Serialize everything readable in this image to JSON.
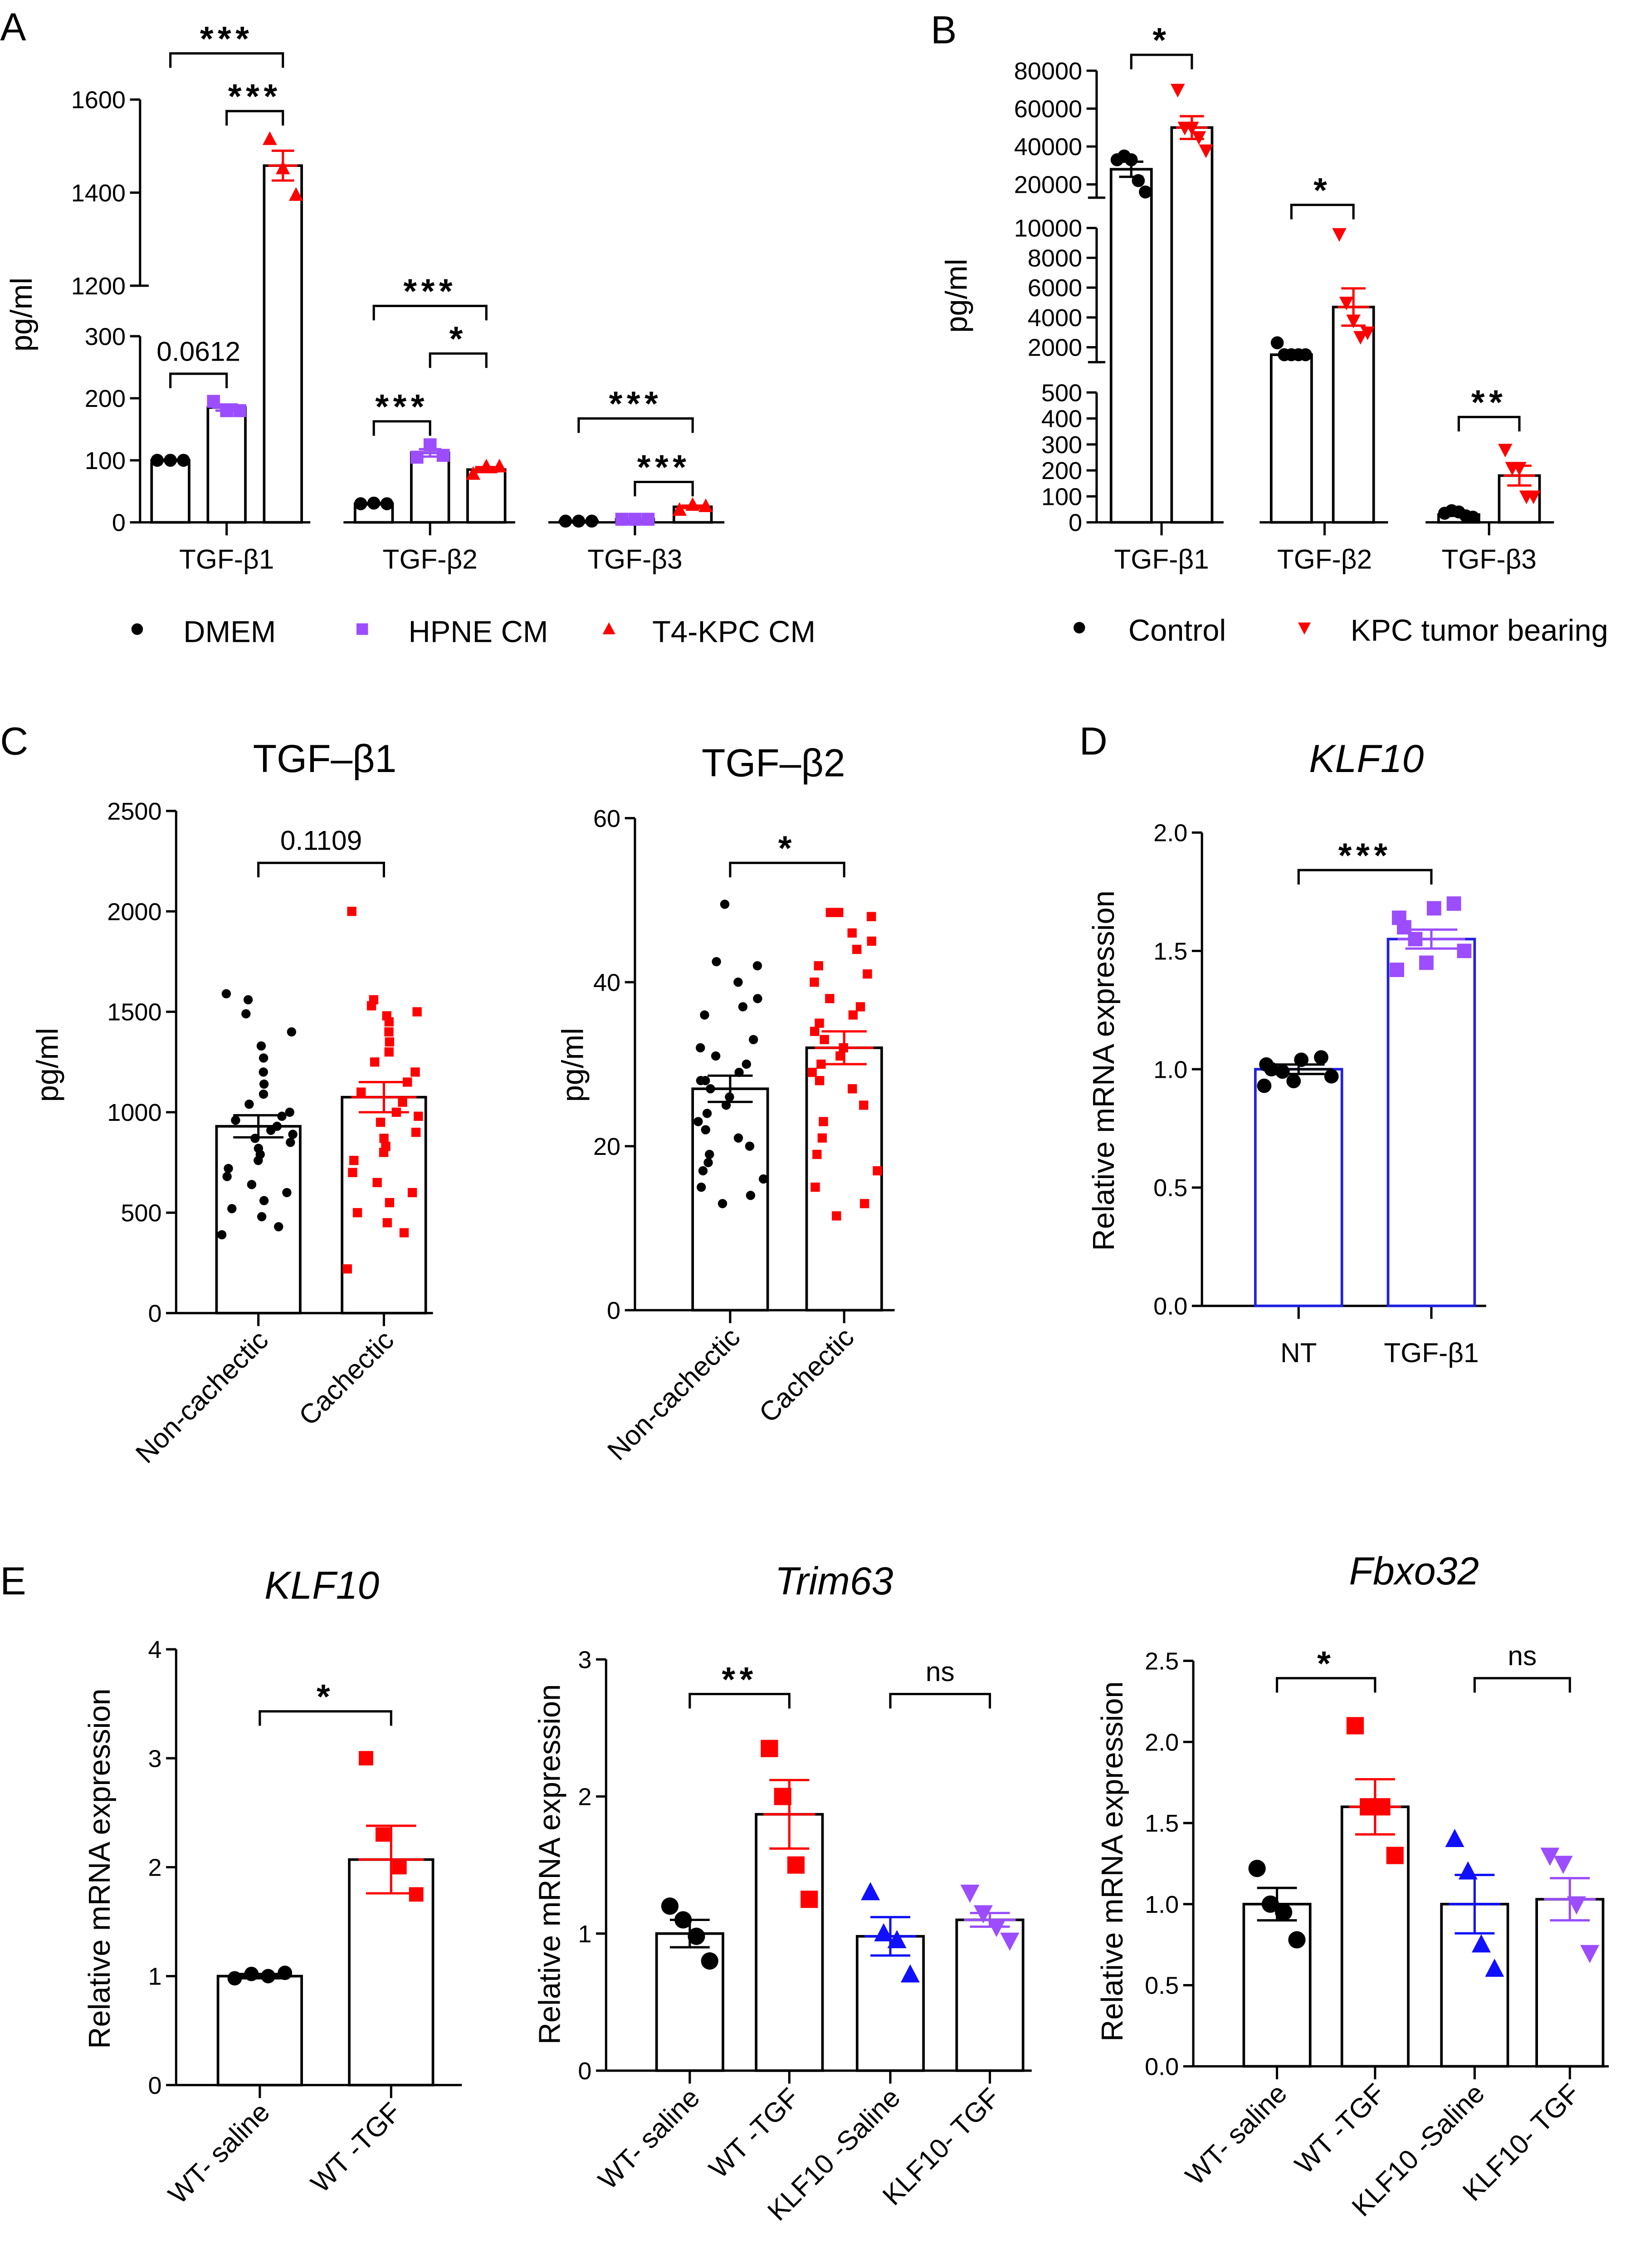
{
  "chart_data": [
    {
      "panel": "A",
      "type": "bar",
      "title": "",
      "ylabel": "pg/ml",
      "y_segments": [
        [
          0,
          300
        ],
        [
          1200,
          1600
        ]
      ],
      "yticks": [
        [
          0,
          100,
          200,
          300
        ],
        [
          1200,
          1400,
          1600
        ]
      ],
      "categories": [
        "TGF-β1",
        "TGF-β2",
        "TGF-β3"
      ],
      "series": [
        {
          "name": "DMEM",
          "color": "#000000",
          "marker": "circle"
        },
        {
          "name": "HPNE CM",
          "color": "#9b4dff",
          "marker": "square"
        },
        {
          "name": "T4-KPC CM",
          "color": "#ff0000",
          "marker": "triangle-up"
        }
      ],
      "legend": "bottom",
      "bars": [
        {
          "category": 0,
          "series": 0,
          "mean": 100,
          "sem": 1,
          "points": [
            100,
            100,
            100
          ]
        },
        {
          "category": 0,
          "series": 1,
          "mean": 185,
          "sem": 5,
          "points": [
            195,
            180,
            180
          ]
        },
        {
          "category": 0,
          "series": 2,
          "mean": 1458,
          "sem": 32,
          "points": [
            1515,
            1452,
            1395
          ]
        },
        {
          "category": 1,
          "series": 0,
          "mean": 30,
          "sem": 1,
          "points": [
            30,
            31,
            30
          ]
        },
        {
          "category": 1,
          "series": 1,
          "mean": 112,
          "sem": 6,
          "points": [
            105,
            125,
            108
          ]
        },
        {
          "category": 1,
          "series": 2,
          "mean": 85,
          "sem": 4,
          "points": [
            78,
            90,
            90
          ]
        },
        {
          "category": 2,
          "series": 0,
          "mean": 2,
          "sem": 0.5,
          "points": [
            2,
            2,
            2
          ]
        },
        {
          "category": 2,
          "series": 1,
          "mean": 5,
          "sem": 0.5,
          "points": [
            5,
            5,
            5
          ]
        },
        {
          "category": 2,
          "series": 2,
          "mean": 25,
          "sem": 2,
          "points": [
            20,
            28,
            26
          ]
        }
      ],
      "significance": [
        {
          "from": 0,
          "to": 2,
          "label": "***"
        },
        {
          "from": 1,
          "to": 2,
          "label": "***"
        },
        {
          "from": 0,
          "to": 1,
          "label": "0.0612"
        },
        {
          "from": 3,
          "to": 5,
          "label": "***"
        },
        {
          "from": 4,
          "to": 5,
          "label": "*"
        },
        {
          "from": 3,
          "to": 4,
          "label": "***"
        },
        {
          "from": 6,
          "to": 8,
          "label": "***"
        },
        {
          "from": 7,
          "to": 8,
          "label": "***"
        }
      ]
    },
    {
      "panel": "B",
      "type": "bar",
      "title": "",
      "ylabel": "pg/ml",
      "y_segments": [
        [
          0,
          500
        ],
        [
          1000,
          10000
        ],
        [
          13000,
          80000
        ]
      ],
      "yticks": [
        [
          0,
          100,
          200,
          300,
          400,
          500
        ],
        [
          2000,
          4000,
          6000,
          8000,
          10000
        ],
        [
          20000,
          40000,
          60000,
          80000
        ]
      ],
      "categories": [
        "TGF-β1",
        "TGF-β2",
        "TGF-β3"
      ],
      "series": [
        {
          "name": "Control",
          "color": "#000000",
          "marker": "circle"
        },
        {
          "name": "KPC tumor bearing",
          "color": "#ff0000",
          "marker": "triangle-down"
        }
      ],
      "legend": "bottom",
      "bars": [
        {
          "category": 0,
          "series": 0,
          "mean": 28000,
          "sem": 4000,
          "points": [
            33000,
            35000,
            33000,
            22000,
            16000
          ]
        },
        {
          "category": 0,
          "series": 1,
          "mean": 50000,
          "sem": 6000,
          "points": [
            70000,
            50000,
            50000,
            45000,
            38000
          ]
        },
        {
          "category": 1,
          "series": 0,
          "mean": 1500,
          "sem": 150,
          "points": [
            2300,
            1500,
            1500,
            1500,
            1500
          ]
        },
        {
          "category": 1,
          "series": 1,
          "mean": 4700,
          "sem": 1250,
          "points": [
            9600,
            5000,
            3800,
            2700,
            3000
          ]
        },
        {
          "category": 2,
          "series": 0,
          "mean": 30,
          "sem": 5,
          "points": [
            35,
            45,
            40,
            25,
            20
          ]
        },
        {
          "category": 2,
          "series": 1,
          "mean": 180,
          "sem": 38,
          "points": [
            280,
            210,
            210,
            100,
            100
          ]
        }
      ],
      "significance": [
        {
          "from": 0,
          "to": 1,
          "label": "*"
        },
        {
          "from": 2,
          "to": 3,
          "label": "*"
        },
        {
          "from": 4,
          "to": 5,
          "label": "**"
        }
      ]
    },
    {
      "panel": "C",
      "type": "bar",
      "title": "TGF–β1",
      "ylabel": "pg/ml",
      "y_segments": [
        [
          0,
          2500
        ]
      ],
      "yticks": [
        [
          0,
          500,
          1000,
          1500,
          2000,
          2500
        ]
      ],
      "categories": [
        "Non-cachectic",
        "Cachectic"
      ],
      "series": [
        {
          "name": "Non-cachectic",
          "color": "#000000",
          "marker": "circle"
        },
        {
          "name": "Cachectic",
          "color": "#ff0000",
          "marker": "square"
        }
      ],
      "bars": [
        {
          "category": 0,
          "series": 0,
          "mean": 930,
          "sem": 55,
          "points": [
            1590,
            1560,
            1490,
            1400,
            1330,
            1270,
            1200,
            1140,
            1090,
            1040,
            1000,
            980,
            960,
            930,
            910,
            890,
            870,
            850,
            820,
            790,
            760,
            720,
            680,
            640,
            600,
            560,
            520,
            480,
            430,
            390
          ]
        },
        {
          "category": 1,
          "series": 1,
          "mean": 1075,
          "sem": 75,
          "points": [
            2000,
            1560,
            1530,
            1500,
            1480,
            1450,
            1400,
            1350,
            1300,
            1250,
            1200,
            1150,
            1100,
            1050,
            1000,
            980,
            950,
            900,
            870,
            830,
            800,
            760,
            700,
            650,
            600,
            550,
            500,
            450,
            400,
            220
          ]
        }
      ],
      "significance": [
        {
          "from": 0,
          "to": 1,
          "label": "0.1109"
        }
      ]
    },
    {
      "panel": "",
      "type": "bar",
      "title": "TGF–β2",
      "ylabel": "pg/ml",
      "y_segments": [
        [
          0,
          60
        ]
      ],
      "yticks": [
        [
          0,
          20,
          40,
          60
        ]
      ],
      "categories": [
        "Non-cachectic",
        "Cachectic"
      ],
      "series": [
        {
          "name": "Non-cachectic",
          "color": "#000000",
          "marker": "circle"
        },
        {
          "name": "Cachectic",
          "color": "#ff0000",
          "marker": "square"
        }
      ],
      "bars": [
        {
          "category": 0,
          "series": 0,
          "mean": 27,
          "sem": 1.6,
          "points": [
            49.5,
            42.5,
            42,
            40,
            38,
            37,
            36,
            33,
            32,
            31,
            30,
            29,
            28,
            28,
            27,
            26,
            25,
            24,
            23,
            22,
            21,
            20,
            19,
            18,
            17,
            16,
            15,
            14,
            13
          ]
        },
        {
          "category": 1,
          "series": 1,
          "mean": 32,
          "sem": 2,
          "points": [
            48.5,
            48.5,
            48,
            46,
            45,
            44,
            42,
            41,
            40,
            38,
            37,
            36,
            35,
            34,
            33,
            32,
            31,
            30,
            29,
            28,
            27,
            25,
            23,
            21,
            19,
            17,
            15,
            13,
            11.5
          ]
        }
      ],
      "significance": [
        {
          "from": 0,
          "to": 1,
          "label": "*"
        }
      ]
    },
    {
      "panel": "D",
      "type": "bar",
      "title": "KLF10",
      "title_italic": true,
      "ylabel": "Relative mRNA expression",
      "y_segments": [
        [
          0,
          2
        ]
      ],
      "yticks": [
        [
          0.0,
          0.5,
          1.0,
          1.5,
          2.0
        ]
      ],
      "ytick_decimals": 1,
      "categories": [
        "NT",
        "TGF-β1"
      ],
      "series": [
        {
          "name": "NT",
          "color": "#000000",
          "marker": "circle",
          "edge": "#2020e0"
        },
        {
          "name": "TGF-β1",
          "color": "#9b4dff",
          "marker": "square",
          "edge": "#2020e0"
        }
      ],
      "bars": [
        {
          "category": 0,
          "series": 0,
          "mean": 1.0,
          "sem": 0.02,
          "points": [
            1.05,
            1.04,
            1.02,
            1.0,
            0.99,
            0.97,
            0.95,
            0.93
          ]
        },
        {
          "category": 1,
          "series": 1,
          "mean": 1.55,
          "sem": 0.04,
          "points": [
            1.7,
            1.68,
            1.64,
            1.6,
            1.55,
            1.5,
            1.45,
            1.42
          ]
        }
      ],
      "significance": [
        {
          "from": 0,
          "to": 1,
          "label": "***"
        }
      ]
    },
    {
      "panel": "E",
      "type": "bar",
      "title": "KLF10",
      "title_italic": true,
      "ylabel": "Relative mRNA expression",
      "y_segments": [
        [
          0,
          4
        ]
      ],
      "yticks": [
        [
          0,
          1,
          2,
          3,
          4
        ]
      ],
      "categories": [
        "WT- saline",
        "WT -TGF"
      ],
      "series": [
        {
          "name": "WT- saline",
          "color": "#000000",
          "marker": "circle"
        },
        {
          "name": "WT -TGF",
          "color": "#ff0000",
          "marker": "square"
        }
      ],
      "bars": [
        {
          "category": 0,
          "series": 0,
          "mean": 1.0,
          "sem": 0.02,
          "points": [
            0.98,
            1.02,
            1.0,
            1.03
          ]
        },
        {
          "category": 1,
          "series": 1,
          "mean": 2.07,
          "sem": 0.31,
          "points": [
            3.0,
            2.3,
            2.0,
            1.75
          ]
        }
      ],
      "significance": [
        {
          "from": 0,
          "to": 1,
          "label": "*"
        }
      ]
    },
    {
      "panel": "",
      "type": "bar",
      "title": "Trim63",
      "title_italic": true,
      "ylabel": "Relative mRNA expression",
      "y_segments": [
        [
          0,
          3
        ]
      ],
      "yticks": [
        [
          0,
          1,
          2,
          3
        ]
      ],
      "categories": [
        "WT- saline",
        "WT -TGF",
        "KLF10 -Saline",
        "KLF10- TGF"
      ],
      "series": [
        {
          "name": "WT- saline",
          "color": "#000000",
          "marker": "circle"
        },
        {
          "name": "WT -TGF",
          "color": "#ff0000",
          "marker": "square"
        },
        {
          "name": "KLF10 -Saline",
          "color": "#1010ff",
          "marker": "triangle-up"
        },
        {
          "name": "KLF10- TGF",
          "color": "#9b4dff",
          "marker": "triangle-down"
        }
      ],
      "bars": [
        {
          "category": 0,
          "series": 0,
          "mean": 1.0,
          "sem": 0.1,
          "points": [
            1.2,
            1.1,
            0.98,
            0.8
          ]
        },
        {
          "category": 1,
          "series": 1,
          "mean": 1.87,
          "sem": 0.25,
          "points": [
            2.35,
            2.0,
            1.5,
            1.25
          ]
        },
        {
          "category": 2,
          "series": 2,
          "mean": 0.98,
          "sem": 0.14,
          "points": [
            1.3,
            1.0,
            0.95,
            0.7
          ]
        },
        {
          "category": 3,
          "series": 3,
          "mean": 1.1,
          "sem": 0.05,
          "points": [
            1.3,
            1.15,
            1.05,
            0.95
          ]
        }
      ],
      "significance": [
        {
          "from": 0,
          "to": 1,
          "label": "**"
        },
        {
          "from": 2,
          "to": 3,
          "label": "ns"
        }
      ]
    },
    {
      "panel": "",
      "type": "bar",
      "title": "Fbxo32",
      "title_italic": true,
      "ylabel": "Relative mRNA expression",
      "y_segments": [
        [
          0,
          2.5
        ]
      ],
      "yticks": [
        [
          0.0,
          0.5,
          1.0,
          1.5,
          2.0,
          2.5
        ]
      ],
      "ytick_decimals": 1,
      "categories": [
        "WT- saline",
        "WT -TGF",
        "KLF10 -Saline",
        "KLF10- TGF"
      ],
      "series": [
        {
          "name": "WT- saline",
          "color": "#000000",
          "marker": "circle"
        },
        {
          "name": "WT -TGF",
          "color": "#ff0000",
          "marker": "square"
        },
        {
          "name": "KLF10 -Saline",
          "color": "#1010ff",
          "marker": "triangle-up"
        },
        {
          "name": "KLF10- TGF",
          "color": "#9b4dff",
          "marker": "triangle-down"
        }
      ],
      "bars": [
        {
          "category": 0,
          "series": 0,
          "mean": 1.0,
          "sem": 0.1,
          "points": [
            1.22,
            1.0,
            0.95,
            0.78
          ]
        },
        {
          "category": 1,
          "series": 1,
          "mean": 1.6,
          "sem": 0.17,
          "points": [
            2.1,
            1.6,
            1.6,
            1.3
          ]
        },
        {
          "category": 2,
          "series": 2,
          "mean": 1.0,
          "sem": 0.18,
          "points": [
            1.4,
            1.2,
            0.75,
            0.6
          ]
        },
        {
          "category": 3,
          "series": 3,
          "mean": 1.03,
          "sem": 0.13,
          "points": [
            1.3,
            1.25,
            1.0,
            0.7
          ]
        }
      ],
      "significance": [
        {
          "from": 0,
          "to": 1,
          "label": "*"
        },
        {
          "from": 2,
          "to": 3,
          "label": "ns"
        }
      ]
    }
  ]
}
